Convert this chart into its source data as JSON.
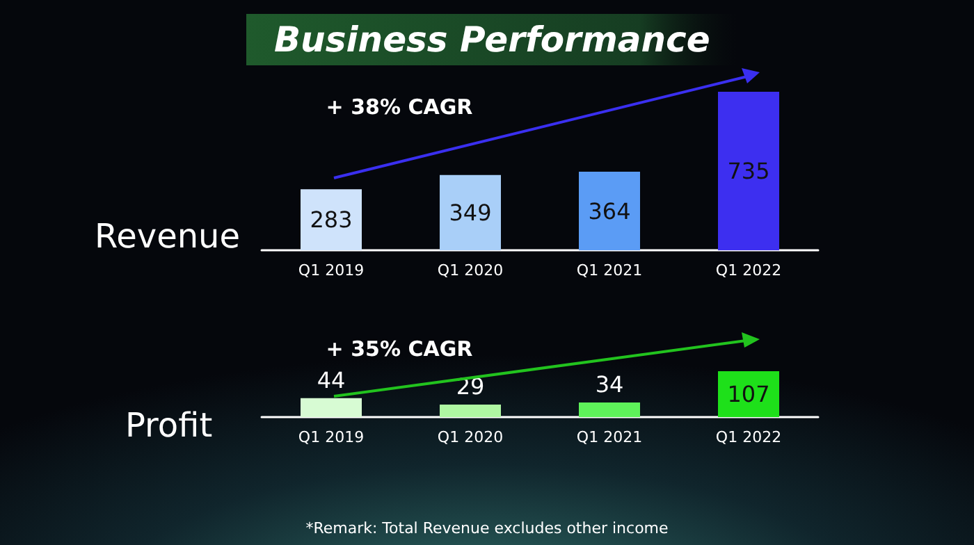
{
  "chart_data": [
    {
      "type": "bar",
      "title": "Business Performance",
      "ylabel": "Revenue",
      "annotations": [
        "+ 38% CAGR"
      ],
      "categories": [
        "Q1 2019",
        "Q1 2020",
        "Q1 2021",
        "Q1 2022"
      ],
      "values": [
        283,
        349,
        364,
        735
      ],
      "colors": [
        "#cfe3fb",
        "#a9cff8",
        "#5b9cf5",
        "#3d2ff0"
      ],
      "data_labels": true
    },
    {
      "type": "bar",
      "ylabel": "Profit",
      "annotations": [
        "+ 35% CAGR",
        "*Remark: Total Revenue excludes other income"
      ],
      "categories": [
        "Q1 2019",
        "Q1 2020",
        "Q1 2021",
        "Q1 2022"
      ],
      "values": [
        44,
        29,
        34,
        107
      ],
      "colors": [
        "#d7fbd3",
        "#aff7a2",
        "#5ef25a",
        "#1ee01a"
      ],
      "data_labels": true
    }
  ]
}
